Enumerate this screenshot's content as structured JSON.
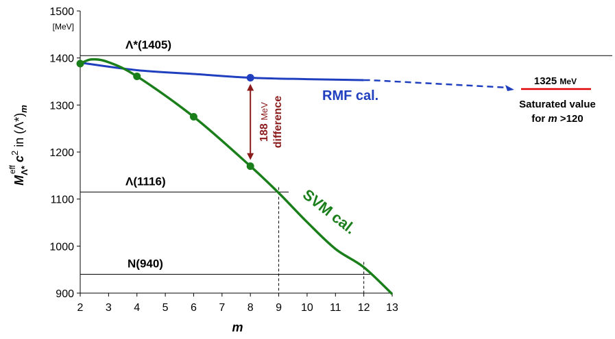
{
  "chart_data": {
    "type": "line",
    "xlabel": "m",
    "ylabel": {
      "main": "M",
      "sub": "Λ*",
      "sup": "eff",
      "c": "c",
      "csup": "2",
      "tail": " in (Λ*)",
      "tailsub": "m"
    },
    "yunit": "[MeV]",
    "xlim": [
      2,
      13
    ],
    "ylim": [
      900,
      1500
    ],
    "xticks": [
      2,
      3,
      4,
      5,
      6,
      7,
      8,
      9,
      10,
      11,
      12,
      13
    ],
    "yticks": [
      900,
      1000,
      1100,
      1200,
      1300,
      1400,
      1500
    ],
    "colors": {
      "rmf": "#1f3fbf",
      "svm": "#1a7f1a",
      "arrow": "#8b1a1a",
      "saturated": "#e00000"
    },
    "series": [
      {
        "name": "RMF cal.",
        "curve": [
          [
            2,
            1390
          ],
          [
            4,
            1374
          ],
          [
            6,
            1366
          ],
          [
            8,
            1358
          ],
          [
            10,
            1355
          ],
          [
            12,
            1353
          ],
          [
            15,
            1352
          ]
        ],
        "markers": [
          [
            8,
            1358
          ]
        ]
      },
      {
        "name": "SVM cal.",
        "curve": [
          [
            2,
            1388
          ],
          [
            2.4,
            1397
          ],
          [
            3,
            1391
          ],
          [
            4,
            1361
          ],
          [
            6,
            1275
          ],
          [
            8,
            1170
          ],
          [
            9,
            1113
          ],
          [
            10,
            1051
          ],
          [
            11,
            994
          ],
          [
            12,
            955
          ],
          [
            13,
            898
          ]
        ],
        "markers": [
          [
            2,
            1388
          ],
          [
            4,
            1361
          ],
          [
            6,
            1275
          ],
          [
            8,
            1170
          ]
        ]
      }
    ],
    "reference_lines": [
      {
        "label": "Λ*(1405)",
        "value": 1405,
        "xmax": null
      },
      {
        "label": "Λ(1116)",
        "value": 1115,
        "xmax": 9.35
      },
      {
        "label": "N(940)",
        "value": 940,
        "xmax": 12.3
      }
    ],
    "crossing_markers": [
      9,
      12
    ],
    "difference_annotation": {
      "x": 8,
      "from": 1358,
      "to": 1170,
      "number": "188",
      "unit": "MeV",
      "word": "difference"
    },
    "saturated": {
      "value": "1325",
      "unit": "MeV",
      "line1": "Saturated value",
      "line2_pre": "for ",
      "line2_m": "m",
      "line2_post": " >120"
    }
  }
}
